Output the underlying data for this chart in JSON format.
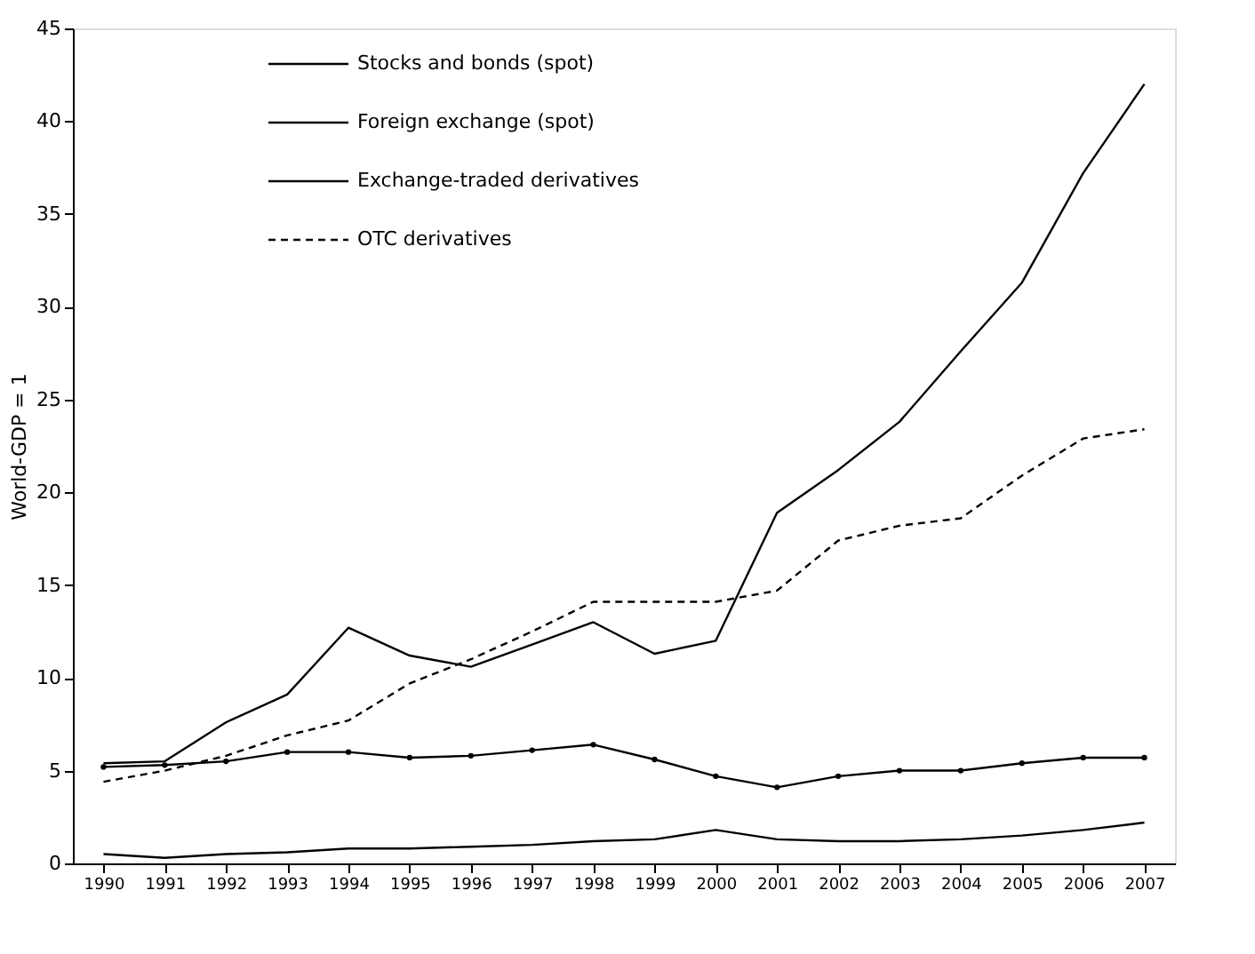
{
  "chart_data": {
    "type": "line",
    "ylabel": "World-GDP = 1",
    "categories": [
      "1990",
      "1991",
      "1992",
      "1993",
      "1994",
      "1995",
      "1996",
      "1997",
      "1998",
      "1999",
      "2000",
      "2001",
      "2002",
      "2003",
      "2004",
      "2005",
      "2006",
      "2007"
    ],
    "series": [
      {
        "name": "Stocks and bonds (spot)",
        "color": "#000000",
        "line_style": "solid",
        "marker": "none",
        "values": [
          0.5,
          0.3,
          0.5,
          0.6,
          0.8,
          0.8,
          0.9,
          1.0,
          1.2,
          1.3,
          1.8,
          1.3,
          1.2,
          1.2,
          1.3,
          1.5,
          1.8,
          2.2
        ]
      },
      {
        "name": "Foreign exchange (spot)",
        "color": "#000000",
        "line_style": "solid",
        "marker": "circle",
        "values": [
          5.2,
          5.3,
          5.5,
          6.0,
          6.0,
          5.7,
          5.8,
          6.1,
          6.4,
          5.6,
          4.7,
          4.1,
          4.7,
          5.0,
          5.0,
          5.4,
          5.7,
          5.7
        ]
      },
      {
        "name": "Exchange-traded derivatives",
        "color": "#000000",
        "line_style": "solid",
        "marker": "none",
        "values": [
          5.4,
          5.5,
          7.6,
          9.1,
          12.7,
          11.2,
          10.6,
          11.8,
          13.0,
          11.3,
          12.0,
          18.9,
          21.2,
          23.8,
          27.6,
          31.3,
          37.2,
          42.0
        ]
      },
      {
        "name": "OTC derivatives",
        "color": "#000000",
        "line_style": "dashed",
        "marker": "none",
        "values": [
          4.4,
          5.0,
          5.8,
          6.9,
          7.7,
          9.7,
          11.0,
          12.5,
          14.1,
          14.1,
          14.1,
          14.7,
          17.4,
          18.2,
          18.6,
          20.9,
          22.9,
          23.4
        ]
      }
    ],
    "ylim": [
      0,
      45
    ],
    "yticks": [
      0,
      5,
      10,
      15,
      20,
      25,
      30,
      35,
      40,
      45
    ],
    "grid": false,
    "legend": "top left"
  }
}
